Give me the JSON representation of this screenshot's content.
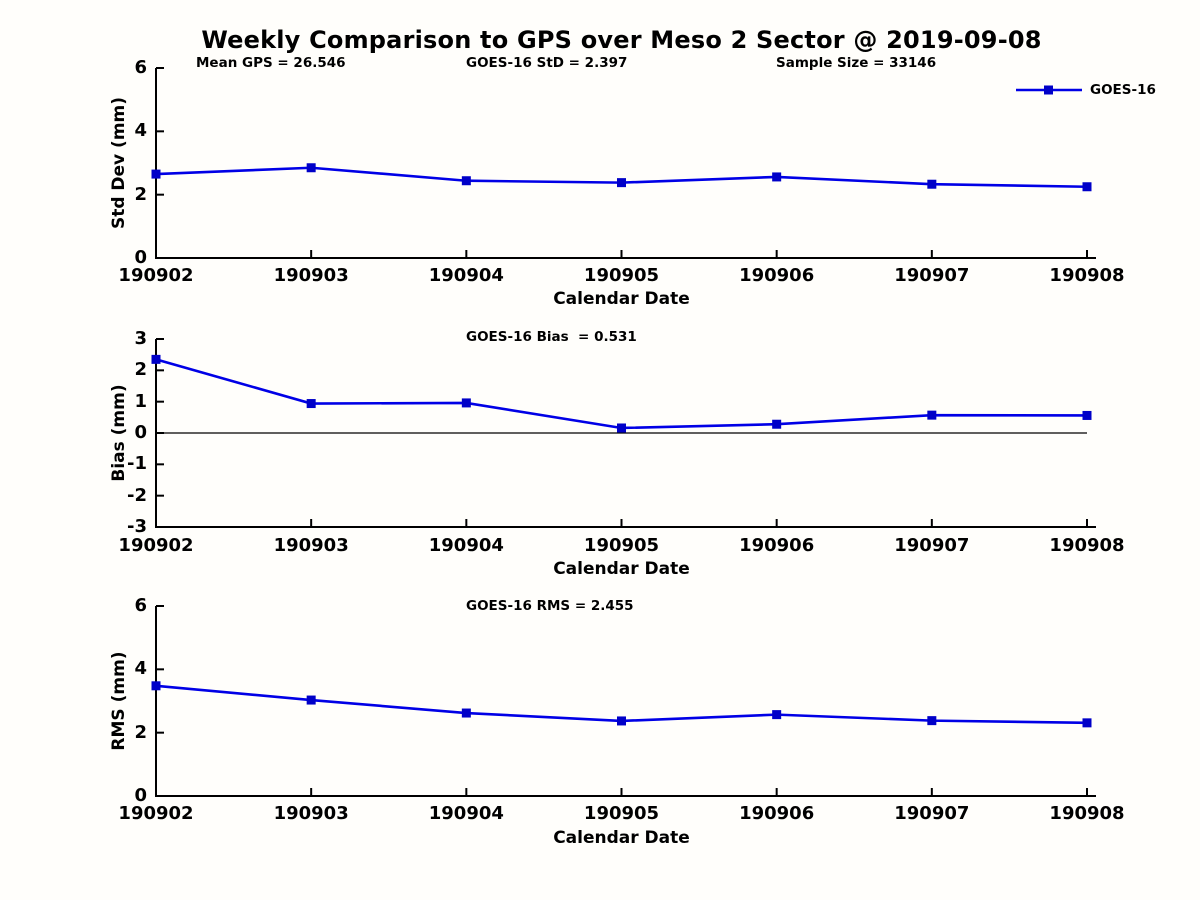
{
  "figure": {
    "title": "Weekly Comparison to GPS over Meso 2 Sector @ 2019-09-08"
  },
  "legend": {
    "label": "GOES-16"
  },
  "colors": {
    "line": "#0000e6",
    "marker": "#0000c8",
    "axis": "#000000",
    "text": "#000000",
    "background": "#fffefb"
  },
  "chart_data": [
    {
      "type": "line",
      "ylabel": "Std Dev (mm)",
      "xlabel": "Calendar Date",
      "annotations": [
        "Mean GPS = 26.546",
        "GOES-16 StD = 2.397",
        "Sample Size = 33146"
      ],
      "categories": [
        "190902",
        "190903",
        "190904",
        "190905",
        "190906",
        "190907",
        "190908"
      ],
      "series": [
        {
          "name": "GOES-16",
          "values": [
            2.65,
            2.85,
            2.44,
            2.38,
            2.56,
            2.33,
            2.25
          ]
        }
      ],
      "ylim": [
        0,
        6
      ],
      "yticks": [
        0,
        2,
        4,
        6
      ],
      "grid": false,
      "zero_line": false,
      "legend_position": "top-right"
    },
    {
      "type": "line",
      "ylabel": "Bias (mm)",
      "xlabel": "Calendar Date",
      "annotations": [
        "GOES-16 Bias  = 0.531"
      ],
      "categories": [
        "190902",
        "190903",
        "190904",
        "190905",
        "190906",
        "190907",
        "190908"
      ],
      "series": [
        {
          "name": "GOES-16",
          "values": [
            2.35,
            0.94,
            0.96,
            0.16,
            0.28,
            0.57,
            0.56
          ]
        }
      ],
      "ylim": [
        -3,
        3
      ],
      "yticks": [
        -3,
        -2,
        -1,
        0,
        1,
        2,
        3
      ],
      "grid": false,
      "zero_line": true,
      "legend_position": "none"
    },
    {
      "type": "line",
      "ylabel": "RMS (mm)",
      "xlabel": "Calendar Date",
      "annotations": [
        "GOES-16 RMS = 2.455"
      ],
      "categories": [
        "190902",
        "190903",
        "190904",
        "190905",
        "190906",
        "190907",
        "190908"
      ],
      "series": [
        {
          "name": "GOES-16",
          "values": [
            3.48,
            3.03,
            2.62,
            2.37,
            2.57,
            2.38,
            2.31
          ]
        }
      ],
      "ylim": [
        0,
        6
      ],
      "yticks": [
        0,
        2,
        4,
        6
      ],
      "grid": false,
      "zero_line": false,
      "legend_position": "none"
    }
  ]
}
